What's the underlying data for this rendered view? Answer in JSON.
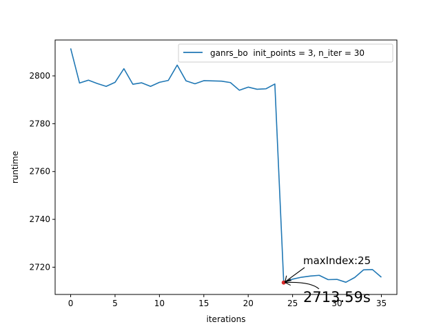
{
  "chart_data": {
    "type": "line",
    "title": "",
    "xlabel": "iterations",
    "ylabel": "runtime",
    "xlim": [
      -1.75,
      36.75
    ],
    "ylim": [
      2708.6,
      2815.0
    ],
    "xticks": [
      0,
      5,
      10,
      15,
      20,
      25,
      30,
      35
    ],
    "yticks": [
      2720,
      2740,
      2760,
      2780,
      2800
    ],
    "grid": false,
    "legend_position": "top-right",
    "series": [
      {
        "name": "ganrs_bo  init_points = 3, n_iter = 30",
        "color": "#1f77b4",
        "x": [
          0,
          1,
          2,
          3,
          4,
          5,
          6,
          7,
          8,
          9,
          10,
          11,
          12,
          13,
          14,
          15,
          16,
          17,
          18,
          19,
          20,
          21,
          22,
          23,
          24,
          25,
          26,
          27,
          28,
          29,
          30,
          31,
          32,
          33,
          34,
          35
        ],
        "y": [
          2811.5,
          2797.0,
          2798.2,
          2796.8,
          2795.6,
          2797.3,
          2803.0,
          2796.5,
          2797.1,
          2795.6,
          2797.3,
          2798.1,
          2804.5,
          2797.9,
          2796.7,
          2798.0,
          2797.9,
          2797.8,
          2797.2,
          2794.0,
          2795.3,
          2794.4,
          2794.6,
          2796.6,
          2713.59,
          2715.0,
          2715.8,
          2716.3,
          2716.6,
          2714.8,
          2714.9,
          2713.7,
          2715.7,
          2718.9,
          2719.0,
          2715.8
        ]
      }
    ],
    "marker": {
      "x": 24,
      "y": 2713.59,
      "color": "#d62728"
    },
    "annotations": [
      {
        "text": "maxIndex:25",
        "x": 24,
        "y": 2713.59
      },
      {
        "text": "2713.59s",
        "x": 24,
        "y": 2713.59
      }
    ]
  }
}
